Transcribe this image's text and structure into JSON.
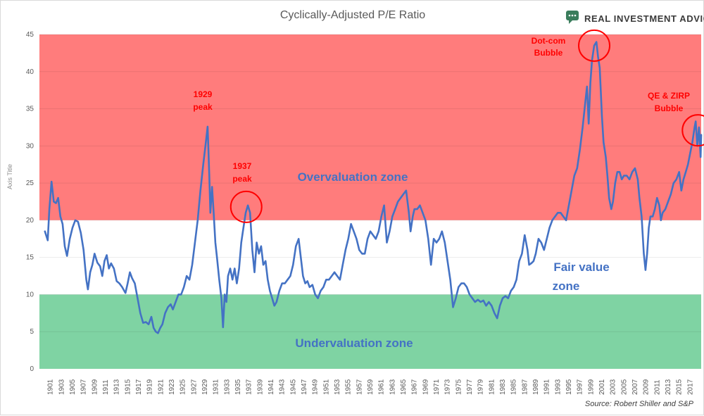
{
  "brand": {
    "name": "REAL INVESTMENT ADVICE",
    "logo_icon": "chat-bubble-logo-icon",
    "logo_color": "#3a7d5c"
  },
  "source": "Source: Robert Shiller and S&P",
  "zone_labels": {
    "over": "Overvaluation zone",
    "fair": "Fair value",
    "fair2": "zone",
    "under": "Undervaluation zone"
  },
  "annotations": [
    {
      "key": "peak1929",
      "line1": "1929",
      "line2": "peak",
      "circled": false
    },
    {
      "key": "peak1937",
      "line1": "1937",
      "line2": "peak",
      "circled": true,
      "x": 1936.5,
      "y": 21.8
    },
    {
      "key": "dotcom",
      "line1": "Dot-com",
      "line2": "Bubble",
      "circled": true,
      "x": 1999.6,
      "y": 43.5
    },
    {
      "key": "qe",
      "line1": "QE & ZIRP",
      "line2": "Bubble",
      "circled": true,
      "x": 2018.4,
      "y": 32.1
    }
  ],
  "colors": {
    "line": "#4472c4",
    "line_over": "#7a4a8f",
    "over_zone": "#ff7c7c",
    "fair_zone": "#ffffff",
    "under_zone": "#7fd3a3",
    "annotation": "#ff0000"
  },
  "chart_data": {
    "type": "line",
    "title": "Cyclically-Adjusted P/E Ratio",
    "xlabel": "",
    "ylabel": "Axis Title",
    "xlim": [
      1899,
      2019
    ],
    "ylim": [
      0,
      45
    ],
    "yticks": [
      0,
      5,
      10,
      15,
      20,
      25,
      30,
      35,
      40,
      45
    ],
    "xticks": [
      1901,
      1903,
      1905,
      1907,
      1909,
      1911,
      1913,
      1915,
      1917,
      1919,
      1921,
      1923,
      1925,
      1927,
      1929,
      1931,
      1933,
      1935,
      1937,
      1939,
      1941,
      1943,
      1945,
      1947,
      1949,
      1951,
      1953,
      1955,
      1957,
      1959,
      1961,
      1963,
      1965,
      1967,
      1969,
      1971,
      1973,
      1975,
      1977,
      1979,
      1981,
      1983,
      1985,
      1987,
      1989,
      1991,
      1993,
      1995,
      1997,
      1999,
      2001,
      2003,
      2005,
      2007,
      2009,
      2011,
      2013,
      2015,
      2017
    ],
    "grid": true,
    "bands": [
      {
        "name": "Overvaluation zone",
        "from": 20,
        "to": 45,
        "color": "#ff7c7c"
      },
      {
        "name": "Fair value zone",
        "from": 10,
        "to": 20,
        "color": "#ffffff"
      },
      {
        "name": "Undervaluation zone",
        "from": 0,
        "to": 10,
        "color": "#7fd3a3"
      }
    ],
    "series": [
      {
        "values": [
          [
            1900.0,
            18.5
          ],
          [
            1900.5,
            17.3
          ],
          [
            1900.8,
            21.5
          ],
          [
            1901.2,
            25.2
          ],
          [
            1901.6,
            22.5
          ],
          [
            1902.0,
            22.3
          ],
          [
            1902.4,
            23.0
          ],
          [
            1902.8,
            20.5
          ],
          [
            1903.2,
            19.5
          ],
          [
            1903.6,
            16.5
          ],
          [
            1904.0,
            15.2
          ],
          [
            1904.5,
            17.5
          ],
          [
            1905.0,
            19.0
          ],
          [
            1905.5,
            20.0
          ],
          [
            1906.0,
            19.8
          ],
          [
            1906.5,
            18.3
          ],
          [
            1907.0,
            16.0
          ],
          [
            1907.5,
            12.0
          ],
          [
            1907.8,
            10.7
          ],
          [
            1908.2,
            13.0
          ],
          [
            1908.6,
            14.0
          ],
          [
            1909.0,
            15.5
          ],
          [
            1909.5,
            14.3
          ],
          [
            1910.0,
            13.8
          ],
          [
            1910.4,
            12.5
          ],
          [
            1910.8,
            14.5
          ],
          [
            1911.2,
            15.3
          ],
          [
            1911.6,
            13.5
          ],
          [
            1912.0,
            14.2
          ],
          [
            1912.5,
            13.5
          ],
          [
            1913.0,
            11.8
          ],
          [
            1913.5,
            11.5
          ],
          [
            1914.0,
            11.0
          ],
          [
            1914.6,
            10.2
          ],
          [
            1915.0,
            11.5
          ],
          [
            1915.4,
            13.0
          ],
          [
            1915.8,
            12.2
          ],
          [
            1916.3,
            11.5
          ],
          [
            1916.8,
            9.5
          ],
          [
            1917.3,
            7.5
          ],
          [
            1917.8,
            6.2
          ],
          [
            1918.3,
            6.3
          ],
          [
            1918.8,
            6.0
          ],
          [
            1919.3,
            7.0
          ],
          [
            1919.7,
            5.5
          ],
          [
            1920.1,
            5.0
          ],
          [
            1920.5,
            4.8
          ],
          [
            1920.9,
            5.5
          ],
          [
            1921.3,
            6.0
          ],
          [
            1921.8,
            7.5
          ],
          [
            1922.3,
            8.3
          ],
          [
            1922.8,
            8.7
          ],
          [
            1923.2,
            8.0
          ],
          [
            1923.7,
            9.0
          ],
          [
            1924.2,
            10.0
          ],
          [
            1924.7,
            10.0
          ],
          [
            1925.2,
            11.0
          ],
          [
            1925.7,
            12.5
          ],
          [
            1926.2,
            12.0
          ],
          [
            1926.7,
            14.0
          ],
          [
            1927.2,
            17.0
          ],
          [
            1927.7,
            20.0
          ],
          [
            1928.2,
            24.0
          ],
          [
            1928.7,
            27.5
          ],
          [
            1929.1,
            30.0
          ],
          [
            1929.5,
            32.6
          ],
          [
            1929.8,
            26.0
          ],
          [
            1930.0,
            21.0
          ],
          [
            1930.3,
            24.5
          ],
          [
            1930.6,
            21.0
          ],
          [
            1930.9,
            17.0
          ],
          [
            1931.2,
            15.0
          ],
          [
            1931.6,
            12.0
          ],
          [
            1932.0,
            9.5
          ],
          [
            1932.3,
            5.6
          ],
          [
            1932.6,
            10.0
          ],
          [
            1932.9,
            9.0
          ],
          [
            1933.2,
            12.5
          ],
          [
            1933.6,
            13.5
          ],
          [
            1934.0,
            12.0
          ],
          [
            1934.4,
            13.5
          ],
          [
            1934.8,
            11.5
          ],
          [
            1935.2,
            13.5
          ],
          [
            1935.6,
            17.0
          ],
          [
            1936.0,
            19.0
          ],
          [
            1936.4,
            21.0
          ],
          [
            1936.8,
            22.0
          ],
          [
            1937.2,
            21.0
          ],
          [
            1937.6,
            16.0
          ],
          [
            1938.0,
            13.0
          ],
          [
            1938.4,
            17.0
          ],
          [
            1938.8,
            15.5
          ],
          [
            1939.2,
            16.5
          ],
          [
            1939.6,
            14.0
          ],
          [
            1940.0,
            14.5
          ],
          [
            1940.4,
            12.0
          ],
          [
            1940.8,
            10.5
          ],
          [
            1941.2,
            9.5
          ],
          [
            1941.6,
            8.5
          ],
          [
            1942.0,
            9.0
          ],
          [
            1942.5,
            10.5
          ],
          [
            1943.0,
            11.5
          ],
          [
            1943.5,
            11.5
          ],
          [
            1944.0,
            12.0
          ],
          [
            1944.5,
            12.5
          ],
          [
            1945.0,
            14.0
          ],
          [
            1945.5,
            16.5
          ],
          [
            1946.0,
            17.5
          ],
          [
            1946.4,
            15.0
          ],
          [
            1946.8,
            12.5
          ],
          [
            1947.2,
            11.5
          ],
          [
            1947.6,
            11.8
          ],
          [
            1948.0,
            11.0
          ],
          [
            1948.5,
            11.3
          ],
          [
            1949.0,
            10.0
          ],
          [
            1949.5,
            9.5
          ],
          [
            1950.0,
            10.5
          ],
          [
            1950.5,
            11.0
          ],
          [
            1951.0,
            12.0
          ],
          [
            1951.5,
            12.0
          ],
          [
            1952.0,
            12.5
          ],
          [
            1952.5,
            13.0
          ],
          [
            1953.0,
            12.5
          ],
          [
            1953.5,
            12.0
          ],
          [
            1954.0,
            14.0
          ],
          [
            1954.5,
            16.0
          ],
          [
            1955.0,
            17.5
          ],
          [
            1955.5,
            19.5
          ],
          [
            1956.0,
            18.5
          ],
          [
            1956.5,
            17.5
          ],
          [
            1957.0,
            16.0
          ],
          [
            1957.5,
            15.5
          ],
          [
            1958.0,
            15.5
          ],
          [
            1958.5,
            17.5
          ],
          [
            1959.0,
            18.5
          ],
          [
            1959.5,
            18.0
          ],
          [
            1960.0,
            17.5
          ],
          [
            1960.5,
            18.5
          ],
          [
            1961.0,
            20.5
          ],
          [
            1961.5,
            22.0
          ],
          [
            1962.0,
            17.0
          ],
          [
            1962.5,
            18.5
          ],
          [
            1963.0,
            20.5
          ],
          [
            1963.5,
            21.5
          ],
          [
            1964.0,
            22.5
          ],
          [
            1964.5,
            23.0
          ],
          [
            1965.0,
            23.5
          ],
          [
            1965.5,
            24.0
          ],
          [
            1966.0,
            21.0
          ],
          [
            1966.3,
            18.5
          ],
          [
            1966.7,
            20.5
          ],
          [
            1967.0,
            21.5
          ],
          [
            1967.5,
            21.5
          ],
          [
            1968.0,
            22.0
          ],
          [
            1968.5,
            21.0
          ],
          [
            1969.0,
            20.0
          ],
          [
            1969.5,
            17.5
          ],
          [
            1970.0,
            14.0
          ],
          [
            1970.5,
            17.5
          ],
          [
            1971.0,
            17.0
          ],
          [
            1971.5,
            17.5
          ],
          [
            1972.0,
            18.5
          ],
          [
            1972.5,
            17.0
          ],
          [
            1973.0,
            14.5
          ],
          [
            1973.5,
            12.0
          ],
          [
            1974.0,
            8.3
          ],
          [
            1974.5,
            9.5
          ],
          [
            1975.0,
            11.0
          ],
          [
            1975.5,
            11.5
          ],
          [
            1976.0,
            11.5
          ],
          [
            1976.5,
            11.0
          ],
          [
            1977.0,
            10.0
          ],
          [
            1977.5,
            9.5
          ],
          [
            1978.0,
            9.0
          ],
          [
            1978.5,
            9.3
          ],
          [
            1979.0,
            9.0
          ],
          [
            1979.5,
            9.2
          ],
          [
            1980.0,
            8.5
          ],
          [
            1980.5,
            9.0
          ],
          [
            1981.0,
            8.5
          ],
          [
            1981.5,
            7.5
          ],
          [
            1982.0,
            6.8
          ],
          [
            1982.5,
            8.5
          ],
          [
            1983.0,
            9.5
          ],
          [
            1983.5,
            9.8
          ],
          [
            1984.0,
            9.5
          ],
          [
            1984.5,
            10.5
          ],
          [
            1985.0,
            11.0
          ],
          [
            1985.5,
            12.0
          ],
          [
            1986.0,
            14.5
          ],
          [
            1986.5,
            15.5
          ],
          [
            1987.0,
            18.0
          ],
          [
            1987.5,
            16.0
          ],
          [
            1987.8,
            14.0
          ],
          [
            1988.2,
            14.2
          ],
          [
            1988.6,
            14.5
          ],
          [
            1989.0,
            15.5
          ],
          [
            1989.5,
            17.5
          ],
          [
            1990.0,
            17.0
          ],
          [
            1990.5,
            16.0
          ],
          [
            1991.0,
            17.5
          ],
          [
            1991.5,
            19.0
          ],
          [
            1992.0,
            20.0
          ],
          [
            1992.5,
            20.5
          ],
          [
            1993.0,
            21.0
          ],
          [
            1993.5,
            21.0
          ],
          [
            1994.0,
            20.5
          ],
          [
            1994.5,
            20.0
          ],
          [
            1995.0,
            22.0
          ],
          [
            1995.5,
            24.0
          ],
          [
            1996.0,
            26.0
          ],
          [
            1996.5,
            27.0
          ],
          [
            1997.0,
            29.5
          ],
          [
            1997.5,
            32.5
          ],
          [
            1998.0,
            36.0
          ],
          [
            1998.3,
            38.0
          ],
          [
            1998.6,
            33.0
          ],
          [
            1998.9,
            38.5
          ],
          [
            1999.2,
            41.5
          ],
          [
            1999.6,
            43.5
          ],
          [
            2000.0,
            44.0
          ],
          [
            2000.3,
            42.0
          ],
          [
            2000.6,
            40.5
          ],
          [
            2001.0,
            34.0
          ],
          [
            2001.3,
            30.5
          ],
          [
            2001.7,
            28.5
          ],
          [
            2002.0,
            26.0
          ],
          [
            2002.3,
            23.0
          ],
          [
            2002.7,
            21.5
          ],
          [
            2003.0,
            22.5
          ],
          [
            2003.4,
            25.0
          ],
          [
            2003.8,
            26.5
          ],
          [
            2004.2,
            26.5
          ],
          [
            2004.6,
            25.5
          ],
          [
            2005.0,
            26.0
          ],
          [
            2005.5,
            26.0
          ],
          [
            2006.0,
            25.5
          ],
          [
            2006.5,
            26.5
          ],
          [
            2007.0,
            27.0
          ],
          [
            2007.5,
            25.5
          ],
          [
            2007.8,
            23.0
          ],
          [
            2008.2,
            20.5
          ],
          [
            2008.6,
            15.5
          ],
          [
            2008.9,
            13.3
          ],
          [
            2009.2,
            15.5
          ],
          [
            2009.5,
            19.0
          ],
          [
            2009.8,
            20.5
          ],
          [
            2010.2,
            20.5
          ],
          [
            2010.6,
            21.5
          ],
          [
            2011.0,
            23.0
          ],
          [
            2011.4,
            22.0
          ],
          [
            2011.7,
            20.0
          ],
          [
            2012.0,
            21.0
          ],
          [
            2012.5,
            21.5
          ],
          [
            2013.0,
            22.5
          ],
          [
            2013.5,
            23.5
          ],
          [
            2014.0,
            25.0
          ],
          [
            2014.5,
            25.5
          ],
          [
            2015.0,
            26.5
          ],
          [
            2015.4,
            24.0
          ],
          [
            2015.8,
            25.5
          ],
          [
            2016.2,
            26.5
          ],
          [
            2016.6,
            27.5
          ],
          [
            2017.0,
            29.0
          ],
          [
            2017.4,
            30.5
          ],
          [
            2017.8,
            32.5
          ],
          [
            2018.0,
            33.3
          ],
          [
            2018.3,
            30.0
          ],
          [
            2018.6,
            32.5
          ],
          [
            2018.9,
            28.5
          ],
          [
            2019.0,
            31.5
          ]
        ]
      }
    ]
  }
}
